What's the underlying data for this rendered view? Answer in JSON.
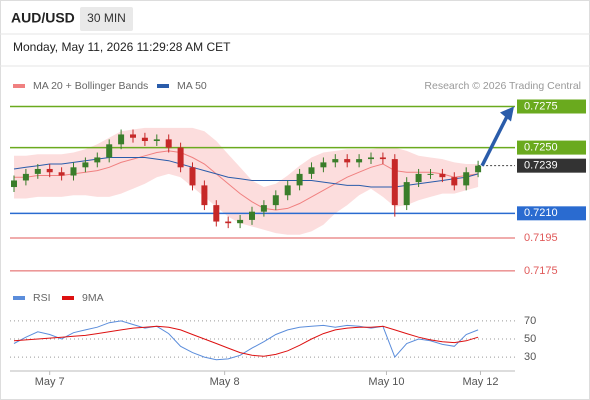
{
  "header": {
    "pair": "AUD/USD",
    "timeframe": "30 MIN",
    "timestamp": "Monday, May 11, 2026 11:29:28 AM CET"
  },
  "chart_data": [
    {
      "type": "candlestick",
      "source": "Research © 2026 Trading Central",
      "ylim": [
        0.7167,
        0.7282
      ],
      "up_color": "#3a7d2a",
      "down_color": "#c62828",
      "ohlc": {
        "open": [
          0.7226,
          0.723,
          0.7234,
          0.7237,
          0.7235,
          0.7233,
          0.7238,
          0.7241,
          0.7244,
          0.7252,
          0.7258,
          0.7256,
          0.7254,
          0.7255,
          0.725,
          0.7238,
          0.7227,
          0.7215,
          0.7205,
          0.7204,
          0.7206,
          0.7211,
          0.7215,
          0.7221,
          0.7227,
          0.7234,
          0.7238,
          0.7241,
          0.7243,
          0.7241,
          0.7243,
          0.7244,
          0.7243,
          0.7215,
          0.7229,
          0.7234,
          0.7234,
          0.7232,
          0.7227,
          0.7235
        ],
        "high": [
          0.7233,
          0.7237,
          0.724,
          0.724,
          0.7238,
          0.7241,
          0.7244,
          0.7247,
          0.7255,
          0.7261,
          0.7261,
          0.7259,
          0.7258,
          0.7258,
          0.7253,
          0.7241,
          0.723,
          0.7218,
          0.7208,
          0.7209,
          0.7214,
          0.7218,
          0.7224,
          0.723,
          0.7237,
          0.7241,
          0.7244,
          0.7246,
          0.7246,
          0.7246,
          0.7247,
          0.7247,
          0.7246,
          0.7232,
          0.7237,
          0.7237,
          0.7237,
          0.7235,
          0.7238,
          0.7242
        ],
        "low": [
          0.7223,
          0.7227,
          0.7231,
          0.7232,
          0.723,
          0.723,
          0.7235,
          0.7238,
          0.7241,
          0.7249,
          0.7253,
          0.7251,
          0.7251,
          0.7247,
          0.7235,
          0.7224,
          0.7212,
          0.7202,
          0.7201,
          0.7201,
          0.7203,
          0.7208,
          0.7212,
          0.7218,
          0.7224,
          0.7231,
          0.7235,
          0.7238,
          0.7238,
          0.7238,
          0.724,
          0.724,
          0.7208,
          0.7212,
          0.7226,
          0.7231,
          0.7229,
          0.7224,
          0.7224,
          0.7232
        ],
        "close": [
          0.723,
          0.7234,
          0.7237,
          0.7235,
          0.7233,
          0.7238,
          0.7241,
          0.7244,
          0.7252,
          0.7258,
          0.7256,
          0.7254,
          0.7255,
          0.725,
          0.7238,
          0.7227,
          0.7215,
          0.7205,
          0.7204,
          0.7206,
          0.7211,
          0.7215,
          0.7221,
          0.7227,
          0.7234,
          0.7238,
          0.7241,
          0.7243,
          0.7241,
          0.7243,
          0.7244,
          0.7243,
          0.7215,
          0.7229,
          0.7234,
          0.7234,
          0.7232,
          0.7227,
          0.7235,
          0.7239
        ]
      },
      "series": [
        {
          "name": "MA 20 + Bollinger Bands",
          "color": "#f08080",
          "band_color": "#fbd5d5",
          "values": [
            0.7232,
            0.7232,
            0.7233,
            0.7233,
            0.7233,
            0.7234,
            0.7235,
            0.7236,
            0.7238,
            0.7241,
            0.7243,
            0.7245,
            0.7247,
            0.7248,
            0.7247,
            0.7244,
            0.724,
            0.7234,
            0.7228,
            0.7222,
            0.7217,
            0.7213,
            0.7212,
            0.7213,
            0.7216,
            0.722,
            0.7224,
            0.7228,
            0.7232,
            0.7235,
            0.7238,
            0.724,
            0.7236,
            0.7235,
            0.7235,
            0.7235,
            0.7234,
            0.7232,
            0.7233,
            0.7234
          ],
          "upper": [
            0.7245,
            0.7245,
            0.7246,
            0.7246,
            0.7246,
            0.7247,
            0.7249,
            0.7252,
            0.7256,
            0.726,
            0.7261,
            0.7262,
            0.7262,
            0.7262,
            0.7262,
            0.7262,
            0.726,
            0.7254,
            0.7246,
            0.7238,
            0.723,
            0.7226,
            0.7228,
            0.7233,
            0.7239,
            0.7244,
            0.7247,
            0.7248,
            0.7249,
            0.7249,
            0.7249,
            0.725,
            0.725,
            0.7248,
            0.7245,
            0.7244,
            0.7243,
            0.7241,
            0.724,
            0.724
          ],
          "lower": [
            0.7219,
            0.7219,
            0.722,
            0.722,
            0.722,
            0.7221,
            0.7221,
            0.722,
            0.722,
            0.7222,
            0.7225,
            0.7228,
            0.7232,
            0.7234,
            0.7232,
            0.7226,
            0.722,
            0.7214,
            0.7208,
            0.7204,
            0.7202,
            0.72,
            0.7198,
            0.7197,
            0.7197,
            0.7199,
            0.7203,
            0.721,
            0.7215,
            0.7221,
            0.7225,
            0.722,
            0.7214,
            0.7215,
            0.7218,
            0.722,
            0.7222,
            0.7222,
            0.7224,
            0.7226
          ]
        },
        {
          "name": "MA 50",
          "color": "#2a5caa",
          "values": [
            0.7237,
            0.7238,
            0.7239,
            0.724,
            0.724,
            0.7241,
            0.7242,
            0.7243,
            0.7244,
            0.7244,
            0.7244,
            0.7244,
            0.7243,
            0.7242,
            0.724,
            0.7238,
            0.7236,
            0.7234,
            0.7232,
            0.7231,
            0.723,
            0.723,
            0.723,
            0.723,
            0.723,
            0.723,
            0.7229,
            0.7228,
            0.7227,
            0.7227,
            0.7226,
            0.7226,
            0.7226,
            0.7227,
            0.7228,
            0.7229,
            0.723,
            0.7231,
            0.7232,
            0.7234
          ]
        }
      ],
      "levels": [
        {
          "value": 0.7275,
          "color": "#6aaa1e",
          "style": "box"
        },
        {
          "value": 0.725,
          "label": "0.7250",
          "color": "#6aaa1e",
          "style": "box"
        },
        {
          "value": 0.7239,
          "color": "#333333",
          "style": "current"
        },
        {
          "value": 0.721,
          "label": "0.7210",
          "color": "#2a6bd0",
          "style": "box"
        },
        {
          "value": 0.7195,
          "color": "#e05a5a",
          "style": "text"
        },
        {
          "value": 0.7175,
          "color": "#e05a5a",
          "style": "text"
        }
      ]
    },
    {
      "type": "line",
      "ylim": [
        18,
        82
      ],
      "yticks": [
        70,
        50,
        30
      ],
      "xticks": [
        {
          "value": 3,
          "label": "May 7"
        },
        {
          "value": 17.7,
          "label": "May 8"
        },
        {
          "value": 31.3,
          "label": "May 10"
        },
        {
          "value": 39.2,
          "label": "May 12"
        }
      ],
      "series": [
        {
          "name": "RSI",
          "color": "#5b8ddb",
          "values": [
            45,
            52,
            58,
            55,
            50,
            57,
            60,
            63,
            68,
            70,
            66,
            62,
            64,
            56,
            42,
            35,
            30,
            27,
            28,
            32,
            40,
            47,
            55,
            60,
            63,
            64,
            65,
            63,
            65,
            64,
            62,
            64,
            30,
            45,
            50,
            48,
            44,
            42,
            55,
            60
          ]
        },
        {
          "name": "9MA",
          "color": "#dd1111",
          "values": [
            48,
            49,
            50,
            51,
            52,
            53,
            54,
            56,
            58,
            60,
            62,
            63,
            64,
            63,
            60,
            55,
            50,
            45,
            40,
            35,
            32,
            31,
            33,
            37,
            43,
            50,
            56,
            60,
            62,
            63,
            63,
            64,
            60,
            56,
            52,
            49,
            47,
            46,
            48,
            52
          ]
        }
      ]
    }
  ]
}
